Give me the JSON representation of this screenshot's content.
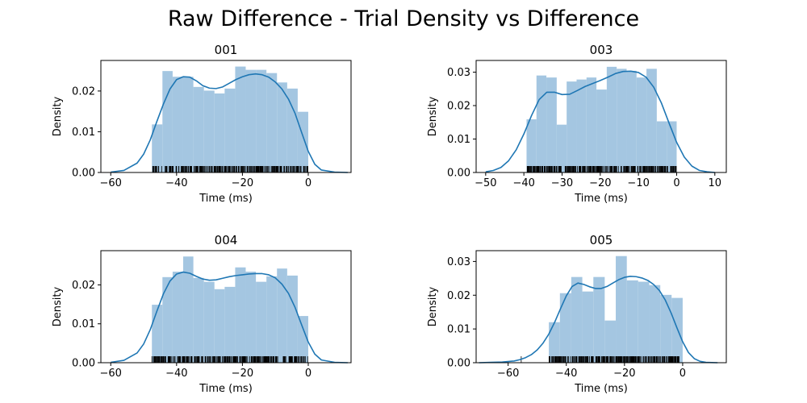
{
  "figure": {
    "title": "Raw Difference - Trial Density vs Difference",
    "colors": {
      "hist": "#a4c6e1",
      "kde": "#1f77b4",
      "rug": "#000000",
      "axes": "#000000"
    }
  },
  "chart_data": [
    {
      "type": "histogram-kde",
      "title": "001",
      "xlabel": "Time (ms)",
      "ylabel": "Density",
      "xlim": [
        -63,
        13
      ],
      "ylim": [
        0,
        0.0275
      ],
      "xticks": [
        -60,
        -40,
        -20,
        0
      ],
      "xtick_labels": [
        "−60",
        "−40",
        "−20",
        "0"
      ],
      "yticks": [
        0,
        0.01,
        0.02
      ],
      "ytick_labels": [
        "0.00",
        "0.01",
        "0.02"
      ],
      "grid": false,
      "rug_range": [
        -47.5,
        0
      ],
      "bins": [
        {
          "x0": -47.5,
          "x1": -44.3,
          "density": 0.0118
        },
        {
          "x0": -44.3,
          "x1": -41.2,
          "density": 0.0249
        },
        {
          "x0": -41.2,
          "x1": -38.0,
          "density": 0.0235
        },
        {
          "x0": -38.0,
          "x1": -34.9,
          "density": 0.0235
        },
        {
          "x0": -34.9,
          "x1": -31.7,
          "density": 0.021
        },
        {
          "x0": -31.7,
          "x1": -28.5,
          "density": 0.0201
        },
        {
          "x0": -28.5,
          "x1": -25.4,
          "density": 0.0194
        },
        {
          "x0": -25.4,
          "x1": -22.2,
          "density": 0.0206
        },
        {
          "x0": -22.2,
          "x1": -19.0,
          "density": 0.026
        },
        {
          "x0": -19.0,
          "x1": -15.9,
          "density": 0.0252
        },
        {
          "x0": -15.9,
          "x1": -12.7,
          "density": 0.0252
        },
        {
          "x0": -12.7,
          "x1": -9.5,
          "density": 0.0244
        },
        {
          "x0": -9.5,
          "x1": -6.4,
          "density": 0.0221
        },
        {
          "x0": -6.4,
          "x1": -3.2,
          "density": 0.0206
        },
        {
          "x0": -3.2,
          "x1": 0.0,
          "density": 0.0149
        }
      ],
      "kde": {
        "x": [
          -60,
          -56,
          -52,
          -50,
          -48,
          -46,
          -44,
          -42,
          -40,
          -38,
          -36,
          -34,
          -32,
          -30,
          -28,
          -26,
          -24,
          -22,
          -20,
          -18,
          -16,
          -14,
          -12,
          -10,
          -8,
          -6,
          -4,
          -2,
          0,
          2,
          4,
          8,
          12
        ],
        "y": [
          0.0001,
          0.0005,
          0.0023,
          0.0045,
          0.008,
          0.0125,
          0.0168,
          0.0205,
          0.0228,
          0.0235,
          0.0234,
          0.0225,
          0.0213,
          0.0207,
          0.0206,
          0.021,
          0.0219,
          0.0228,
          0.0235,
          0.024,
          0.0242,
          0.024,
          0.0234,
          0.0222,
          0.0205,
          0.018,
          0.0145,
          0.0098,
          0.0052,
          0.002,
          0.0006,
          0.0001,
          0.0
        ]
      }
    },
    {
      "type": "histogram-kde",
      "title": "003",
      "xlabel": "Time (ms)",
      "ylabel": "Density",
      "xlim": [
        -52.5,
        13
      ],
      "ylim": [
        0,
        0.0335
      ],
      "xticks": [
        -50,
        -40,
        -30,
        -20,
        -10,
        0,
        10
      ],
      "xtick_labels": [
        "−50",
        "−40",
        "−30",
        "−20",
        "−10",
        "0",
        "10"
      ],
      "yticks": [
        0,
        0.01,
        0.02,
        0.03
      ],
      "ytick_labels": [
        "0.00",
        "0.01",
        "0.02",
        "0.03"
      ],
      "grid": false,
      "rug_range": [
        -39.3,
        0
      ],
      "bins": [
        {
          "x0": -39.3,
          "x1": -36.7,
          "density": 0.0159
        },
        {
          "x0": -36.7,
          "x1": -34.1,
          "density": 0.029
        },
        {
          "x0": -34.1,
          "x1": -31.4,
          "density": 0.0284
        },
        {
          "x0": -31.4,
          "x1": -28.8,
          "density": 0.0143
        },
        {
          "x0": -28.8,
          "x1": -26.2,
          "density": 0.0272
        },
        {
          "x0": -26.2,
          "x1": -23.6,
          "density": 0.0278
        },
        {
          "x0": -23.6,
          "x1": -21.0,
          "density": 0.0284
        },
        {
          "x0": -21.0,
          "x1": -18.3,
          "density": 0.0248
        },
        {
          "x0": -18.3,
          "x1": -15.7,
          "density": 0.0316
        },
        {
          "x0": -15.7,
          "x1": -13.1,
          "density": 0.031
        },
        {
          "x0": -13.1,
          "x1": -10.5,
          "density": 0.0304
        },
        {
          "x0": -10.5,
          "x1": -7.9,
          "density": 0.0284
        },
        {
          "x0": -7.9,
          "x1": -5.2,
          "density": 0.031
        },
        {
          "x0": -5.2,
          "x1": -2.6,
          "density": 0.0153
        },
        {
          "x0": -2.6,
          "x1": 0.0,
          "density": 0.0153
        }
      ],
      "kde": {
        "x": [
          -50,
          -48,
          -46,
          -44,
          -42,
          -40,
          -38,
          -36,
          -34,
          -32,
          -30,
          -28,
          -26,
          -24,
          -22,
          -20,
          -18,
          -16,
          -14,
          -12,
          -10,
          -8,
          -6,
          -4,
          -2,
          0,
          2,
          4,
          6,
          8,
          10
        ],
        "y": [
          0.0002,
          0.0006,
          0.0015,
          0.0035,
          0.0068,
          0.0115,
          0.017,
          0.0218,
          0.024,
          0.024,
          0.0233,
          0.0234,
          0.0245,
          0.0257,
          0.0266,
          0.0275,
          0.0285,
          0.0296,
          0.0302,
          0.0303,
          0.0299,
          0.0285,
          0.0255,
          0.0208,
          0.0148,
          0.009,
          0.0046,
          0.0019,
          0.0006,
          0.0002,
          0.0
        ]
      }
    },
    {
      "type": "histogram-kde",
      "title": "004",
      "xlabel": "Time (ms)",
      "ylabel": "Density",
      "xlim": [
        -63,
        13
      ],
      "ylim": [
        0,
        0.0288
      ],
      "xticks": [
        -60,
        -40,
        -20,
        0
      ],
      "xtick_labels": [
        "−60",
        "−40",
        "−20",
        "0"
      ],
      "yticks": [
        0,
        0.01,
        0.02
      ],
      "ytick_labels": [
        "0.00",
        "0.01",
        "0.02"
      ],
      "grid": false,
      "rug_range": [
        -47.5,
        0
      ],
      "bins": [
        {
          "x0": -47.5,
          "x1": -44.3,
          "density": 0.0149
        },
        {
          "x0": -44.3,
          "x1": -41.2,
          "density": 0.022
        },
        {
          "x0": -41.2,
          "x1": -38.0,
          "density": 0.0234
        },
        {
          "x0": -38.0,
          "x1": -34.9,
          "density": 0.0273
        },
        {
          "x0": -34.9,
          "x1": -31.7,
          "density": 0.0218
        },
        {
          "x0": -31.7,
          "x1": -28.5,
          "density": 0.0208
        },
        {
          "x0": -28.5,
          "x1": -25.4,
          "density": 0.0189
        },
        {
          "x0": -25.4,
          "x1": -22.2,
          "density": 0.0195
        },
        {
          "x0": -22.2,
          "x1": -19.0,
          "density": 0.0245
        },
        {
          "x0": -19.0,
          "x1": -15.9,
          "density": 0.0234
        },
        {
          "x0": -15.9,
          "x1": -12.7,
          "density": 0.0208
        },
        {
          "x0": -12.7,
          "x1": -9.5,
          "density": 0.0222
        },
        {
          "x0": -9.5,
          "x1": -6.4,
          "density": 0.0242
        },
        {
          "x0": -6.4,
          "x1": -3.2,
          "density": 0.0224
        },
        {
          "x0": -3.2,
          "x1": 0.0,
          "density": 0.012
        }
      ],
      "kde": {
        "x": [
          -60,
          -56,
          -52,
          -50,
          -48,
          -46,
          -44,
          -42,
          -40,
          -38,
          -36,
          -34,
          -32,
          -30,
          -28,
          -26,
          -24,
          -22,
          -20,
          -18,
          -16,
          -14,
          -12,
          -10,
          -8,
          -6,
          -4,
          -2,
          0,
          2,
          4,
          8,
          12
        ],
        "y": [
          0.0001,
          0.0006,
          0.0025,
          0.0048,
          0.0085,
          0.0132,
          0.0177,
          0.021,
          0.0228,
          0.0233,
          0.023,
          0.0222,
          0.0215,
          0.0212,
          0.0213,
          0.0217,
          0.0221,
          0.0224,
          0.0226,
          0.0228,
          0.0229,
          0.0229,
          0.0226,
          0.0218,
          0.0202,
          0.0178,
          0.0142,
          0.0097,
          0.0053,
          0.0022,
          0.0007,
          0.0001,
          0.0
        ]
      }
    },
    {
      "type": "histogram-kde",
      "title": "005",
      "xlabel": "Time (ms)",
      "ylabel": "Density",
      "xlim": [
        -71,
        15
      ],
      "ylim": [
        0,
        0.0332
      ],
      "xticks": [
        -60,
        -40,
        -20,
        0
      ],
      "xtick_labels": [
        "−60",
        "−40",
        "−20",
        "0"
      ],
      "yticks": [
        0,
        0.01,
        0.02,
        0.03
      ],
      "ytick_labels": [
        "0.00",
        "0.01",
        "0.02",
        "0.03"
      ],
      "grid": false,
      "rug_range": [
        -46,
        0
      ],
      "rug_extra": [
        -55.5
      ],
      "bins": [
        {
          "x0": -46,
          "x1": -42.2,
          "density": 0.012
        },
        {
          "x0": -42.2,
          "x1": -38.3,
          "density": 0.0206
        },
        {
          "x0": -38.3,
          "x1": -34.5,
          "density": 0.0254
        },
        {
          "x0": -34.5,
          "x1": -30.7,
          "density": 0.0211
        },
        {
          "x0": -30.7,
          "x1": -26.8,
          "density": 0.0254
        },
        {
          "x0": -26.8,
          "x1": -23.0,
          "density": 0.0125
        },
        {
          "x0": -23.0,
          "x1": -19.2,
          "density": 0.0316
        },
        {
          "x0": -19.2,
          "x1": -15.3,
          "density": 0.0244
        },
        {
          "x0": -15.3,
          "x1": -11.5,
          "density": 0.024
        },
        {
          "x0": -11.5,
          "x1": -7.7,
          "density": 0.023
        },
        {
          "x0": -7.7,
          "x1": -3.8,
          "density": 0.0201
        },
        {
          "x0": -3.8,
          "x1": 0.0,
          "density": 0.0192
        }
      ],
      "kde": {
        "x": [
          -70,
          -66,
          -62,
          -58,
          -56,
          -54,
          -52,
          -50,
          -48,
          -46,
          -44,
          -42,
          -40,
          -38,
          -36,
          -34,
          -32,
          -30,
          -28,
          -26,
          -24,
          -22,
          -20,
          -18,
          -16,
          -14,
          -12,
          -10,
          -8,
          -6,
          -4,
          -2,
          0,
          2,
          4,
          6,
          8,
          12
        ],
        "y": [
          0.0,
          0.0001,
          0.0002,
          0.0005,
          0.0009,
          0.0015,
          0.0024,
          0.0038,
          0.0058,
          0.0085,
          0.012,
          0.016,
          0.0198,
          0.0226,
          0.0236,
          0.0232,
          0.0225,
          0.022,
          0.022,
          0.0226,
          0.0236,
          0.0246,
          0.0253,
          0.0256,
          0.0255,
          0.0251,
          0.0244,
          0.0232,
          0.0214,
          0.0186,
          0.0148,
          0.0104,
          0.0062,
          0.003,
          0.0012,
          0.0004,
          0.0001,
          0.0
        ]
      }
    }
  ]
}
